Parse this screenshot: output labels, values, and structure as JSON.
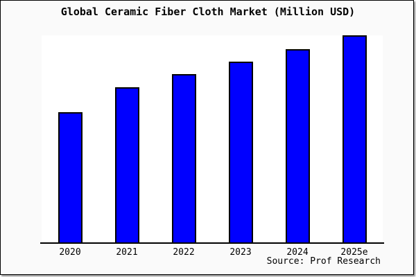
{
  "title": "Global Ceramic Fiber Cloth Market (Million USD)",
  "source": "Source: Prof Research",
  "colors": {
    "background": "#fafafa",
    "plot_background": "#ffffff",
    "bar_fill": "#0000ff",
    "bar_border": "#000000",
    "axis": "#000000",
    "text": "#000000"
  },
  "chart_data": {
    "type": "bar",
    "title": "Global Ceramic Fiber Cloth Market (Million USD)",
    "categories": [
      "2020",
      "2021",
      "2022",
      "2023",
      "2024",
      "2025e"
    ],
    "values": [
      63,
      75,
      81.5,
      87.5,
      93.5,
      100
    ],
    "series_note": "No y-axis scale is shown in the image; values are relative bar heights normalized so the tallest bar (2025e) = 100.",
    "xlabel": "",
    "ylabel": "",
    "ylim": [
      0,
      100
    ],
    "grid": false,
    "legend": false,
    "y_axis_visible": false,
    "annotation": "Source: Prof Research"
  }
}
